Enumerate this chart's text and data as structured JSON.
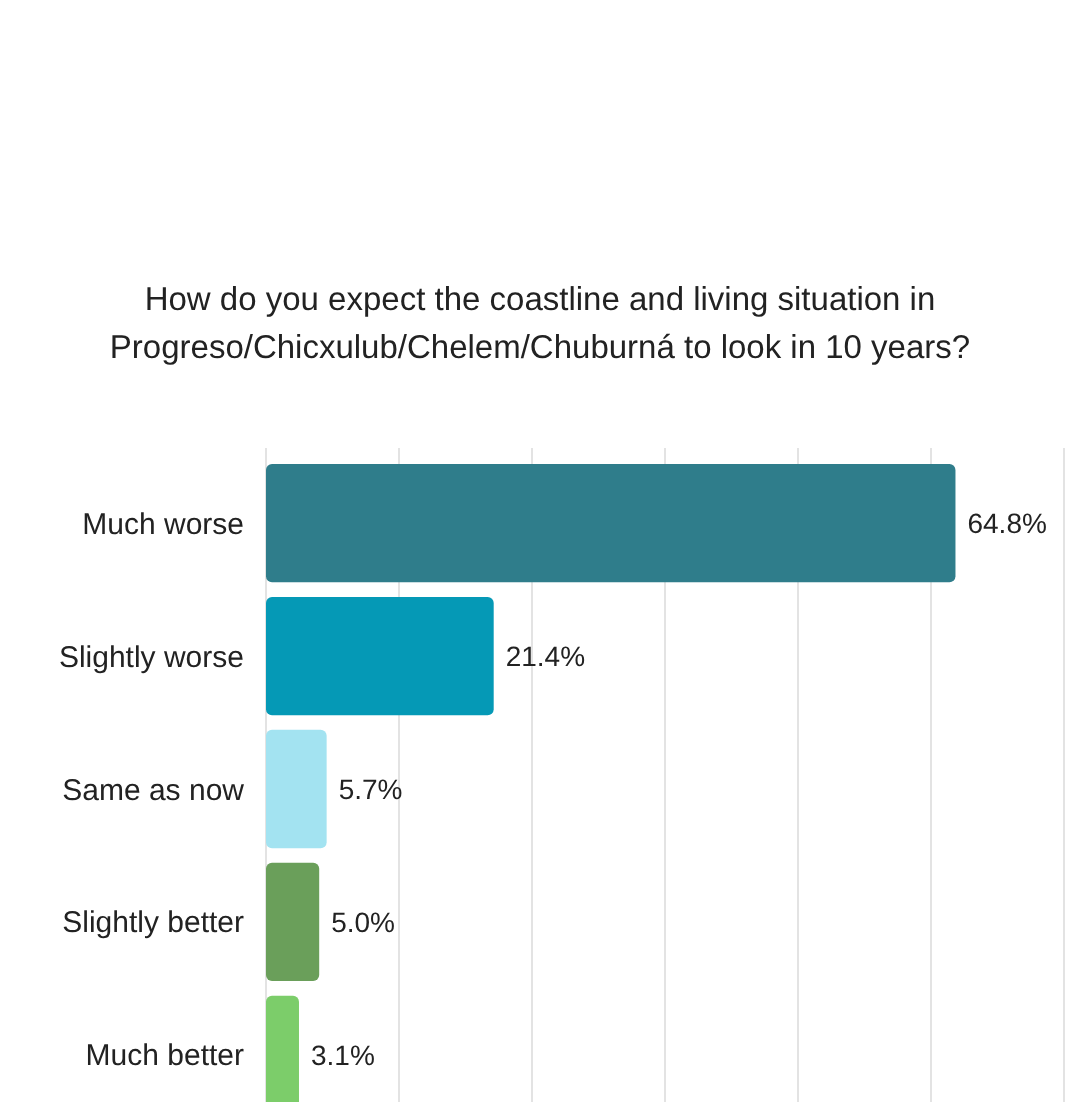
{
  "chart_data": {
    "type": "bar",
    "orientation": "horizontal",
    "title": "How do you expect the coastline and living situation in\nProgreso/Chicxulub/Chelem/Chuburná to look in 10 years?",
    "categories": [
      "Much worse",
      "Slightly worse",
      "Same as now",
      "Slightly better",
      "Much better"
    ],
    "values": [
      64.8,
      21.4,
      5.7,
      5.0,
      3.1
    ],
    "value_labels": [
      "64.8%",
      "21.4%",
      "5.7%",
      "5.0%",
      "3.1%"
    ],
    "colors": [
      "#2f7d8b",
      "#0599b6",
      "#a3e3f1",
      "#6a9f5a",
      "#7ccd6a"
    ],
    "xlim": [
      0,
      75
    ],
    "xticks": [
      {
        "value": 0,
        "label": null
      },
      {
        "value": 12.5,
        "label": null
      },
      {
        "value": 25,
        "label": null
      },
      {
        "value": 37.5,
        "label": null
      },
      {
        "value": 50,
        "label": null
      },
      {
        "value": 62.5,
        "label": null
      },
      {
        "value": 75,
        "label": null
      }
    ],
    "tick_labels": "y",
    "grid": "x"
  }
}
